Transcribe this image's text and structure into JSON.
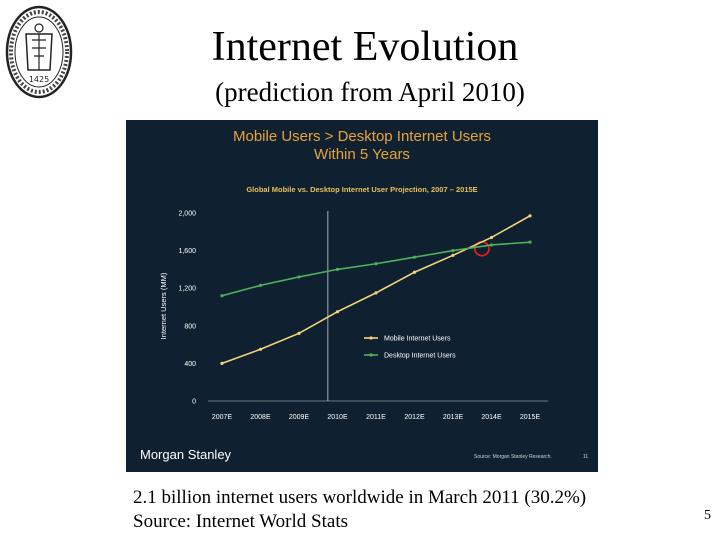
{
  "slide": {
    "title": "Internet Evolution",
    "subtitle": "(prediction from April 2010)",
    "footer_line1": "2.1 billion internet users worldwide in March 2011 (30.2%)",
    "footer_line2": "Source: Internet World Stats",
    "page_number": "5"
  },
  "seal": {
    "year": "1425"
  },
  "panel": {
    "headline_line1": "Mobile Users > Desktop Internet Users",
    "headline_line2": "Within 5 Years",
    "brand": "Morgan Stanley",
    "source": "Source: Morgan Stanley Research.",
    "slide_ref": "11",
    "colors": {
      "background": "#0f2130",
      "headline": "#e8a23a",
      "mobile": "#f4d57a",
      "desktop": "#4fb05a",
      "highlight": "#e02020"
    }
  },
  "chart_data": {
    "type": "line",
    "title": "Global Mobile vs. Desktop Internet User Projection, 2007 – 2015E",
    "xlabel": "",
    "ylabel": "Internet Users (MM)",
    "categories": [
      "2007E",
      "2008E",
      "2009E",
      "2010E",
      "2011E",
      "2012E",
      "2013E",
      "2014E",
      "2015E"
    ],
    "y_ticks": [
      "0",
      "400",
      "800",
      "1,200",
      "1,600",
      "2,000"
    ],
    "ylim": [
      0,
      2000
    ],
    "series": [
      {
        "name": "Mobile Internet Users",
        "color": "#f4d57a",
        "values": [
          400,
          550,
          720,
          950,
          1150,
          1370,
          1550,
          1740,
          1970
        ]
      },
      {
        "name": "Desktop Internet Users",
        "color": "#4fb05a",
        "values": [
          1120,
          1230,
          1320,
          1400,
          1460,
          1530,
          1600,
          1660,
          1690
        ]
      }
    ],
    "legend_position": "right",
    "grid": false,
    "annotations": [
      {
        "type": "vertical-line",
        "x": "2009E",
        "offset": 0.75
      },
      {
        "type": "circle",
        "x": "2013E",
        "offset": 0.75,
        "y": 1620,
        "color": "#e02020"
      }
    ]
  }
}
